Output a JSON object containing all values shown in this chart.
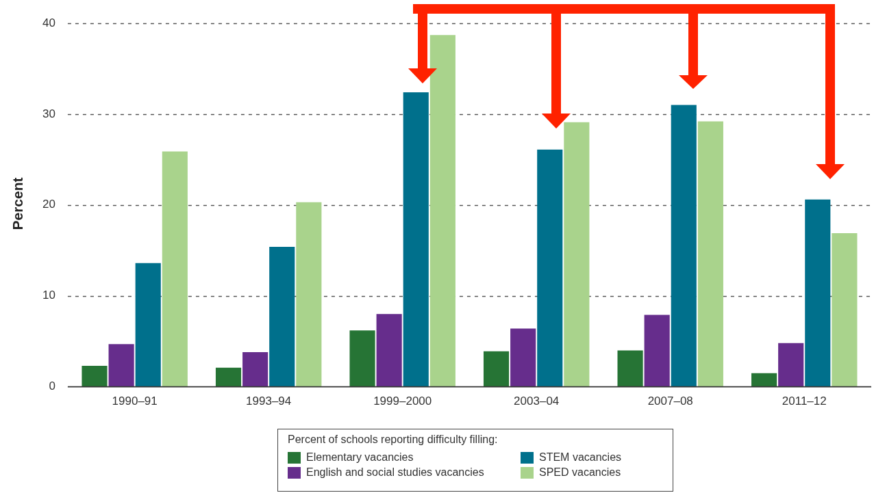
{
  "chart_data": {
    "type": "bar",
    "ylabel": "Percent",
    "legend_title": "Percent of schools reporting difficulty filling:",
    "categories": [
      "1990–91",
      "1993–94",
      "1999–2000",
      "2003–04",
      "2007–08",
      "2011–12"
    ],
    "series": [
      {
        "name": "Elementary vacancies",
        "color": "#267435",
        "values": [
          2.3,
          2.1,
          6.2,
          3.9,
          4.0,
          1.5
        ]
      },
      {
        "name": "English and social studies vacancies",
        "color": "#662d8c",
        "values": [
          4.7,
          3.8,
          8.0,
          6.4,
          7.9,
          4.8
        ]
      },
      {
        "name": "STEM vacancies",
        "color": "#00708c",
        "values": [
          13.6,
          15.4,
          32.4,
          26.1,
          31.0,
          20.6
        ]
      },
      {
        "name": "SPED vacancies",
        "color": "#a9d38c",
        "values": [
          25.9,
          20.3,
          38.7,
          29.1,
          29.2,
          16.9
        ]
      }
    ],
    "ylim": [
      0,
      40
    ],
    "yticks": [
      0,
      10,
      20,
      30,
      40
    ],
    "grid": "y",
    "legend": "bottom"
  }
}
